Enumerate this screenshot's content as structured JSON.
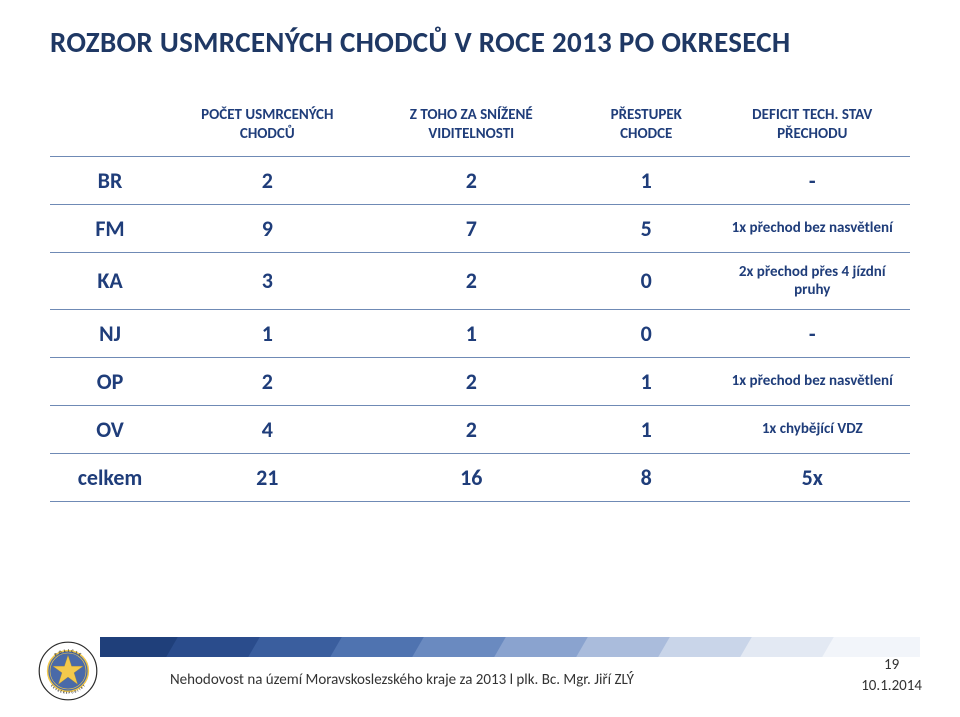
{
  "title": "ROZBOR USMRCENÝCH CHODCŮ  V ROCE 2013 PO OKRESECH",
  "table": {
    "headers": [
      "",
      "POČET USMRCENÝCH CHODCŮ",
      "Z TOHO ZA SNÍŽENÉ VIDITELNOSTI",
      "PŘESTUPEK CHODCE",
      "DEFICIT TECH. STAV PŘECHODU"
    ],
    "rows": [
      {
        "label": "BR",
        "c1": "2",
        "c2": "2",
        "c3": "1",
        "c4": "-"
      },
      {
        "label": "FM",
        "c1": "9",
        "c2": "7",
        "c3": "5",
        "c4": "1x přechod bez nasvětlení"
      },
      {
        "label": "KA",
        "c1": "3",
        "c2": "2",
        "c3": "0",
        "c4": "2x přechod přes 4 jízdní pruhy"
      },
      {
        "label": "NJ",
        "c1": "1",
        "c2": "1",
        "c3": "0",
        "c4": "-"
      },
      {
        "label": "OP",
        "c1": "2",
        "c2": "2",
        "c3": "1",
        "c4": "1x přechod bez nasvětlení"
      },
      {
        "label": "OV",
        "c1": "4",
        "c2": "2",
        "c3": "1",
        "c4": "1x chybějící VDZ"
      },
      {
        "label": "celkem",
        "c1": "21",
        "c2": "16",
        "c3": "8",
        "c4": "5x"
      }
    ],
    "note_rows": [
      1,
      2,
      4,
      5
    ],
    "colors": {
      "heading": "#1f3864",
      "cell_text": "#1f3d7a",
      "border": "#6f8ab5"
    }
  },
  "stripe_colors": [
    "#1f3f7a",
    "#2a4c8c",
    "#3a5e9e",
    "#4f73b0",
    "#6a8ac0",
    "#8aa3cf",
    "#aabcdc",
    "#c9d5e9",
    "#e3e9f3",
    "#f2f5fa"
  ],
  "footer": {
    "text": "Nehodovost na území Moravskoslezského kraje za 2013 l  plk. Bc. Mgr. Jiří ZLÝ",
    "page": "19",
    "date": "10.1.2014"
  },
  "logo": {
    "outer_text_top": "P O L I C I E",
    "outer_text_bottom": "Č E S K É   R E P U B L I K Y",
    "circle_bg": "#4a6aa8",
    "ring": "#f3c94c",
    "star": "#f3c94c"
  }
}
